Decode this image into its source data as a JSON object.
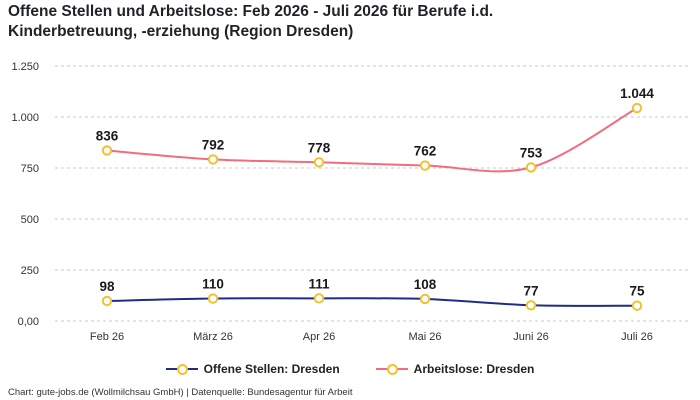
{
  "title_lines": [
    "Offene Stellen und Arbeitslose: Feb 2026 - Juli 2026 für Berufe i.d.",
    "Kinderbetreuung, -erziehung (Region Dresden)"
  ],
  "source": "Chart: gute-jobs.de (Wollmilchsau GmbH) | Datenquelle: Bundesagentur für Arbeit",
  "colors": {
    "offene_stellen": "#1f2d86",
    "arbeitslose": "#f26c7e",
    "marker_stroke": "#f2c12e",
    "grid": "#c8c8c8"
  },
  "chart_data": {
    "type": "line",
    "title": "Offene Stellen und Arbeitslose: Feb 2026 - Juli 2026 für Berufe i.d. Kinderbetreuung, -erziehung (Region Dresden)",
    "categories": [
      "Feb 26",
      "März 26",
      "Apr 26",
      "Mai 26",
      "Juni 26",
      "Juli 26"
    ],
    "series": [
      {
        "name": "Offene Stellen: Dresden",
        "values": [
          98,
          110,
          111,
          108,
          77,
          75
        ],
        "labels": [
          "98",
          "110",
          "111",
          "108",
          "77",
          "75"
        ]
      },
      {
        "name": "Arbeitslose: Dresden",
        "values": [
          836,
          792,
          778,
          762,
          753,
          1044
        ],
        "labels": [
          "836",
          "792",
          "778",
          "762",
          "753",
          "1.044"
        ]
      }
    ],
    "yticks": [
      0,
      250,
      500,
      750,
      1000,
      1250
    ],
    "ytick_labels": [
      "0,00",
      "250",
      "500",
      "750",
      "1.000",
      "1.250"
    ],
    "ylim": [
      0,
      1250
    ],
    "xlabel": "",
    "ylabel": "",
    "grid": true,
    "grid_style": "dashed-horizontal",
    "legend_position": "bottom",
    "smooth": true,
    "marker": "hollow-circle"
  }
}
